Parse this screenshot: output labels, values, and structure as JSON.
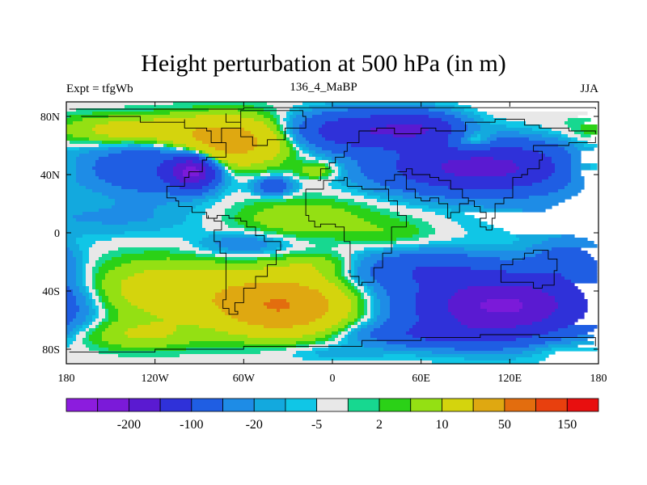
{
  "chart_data": {
    "type": "heatmap",
    "title": "Height perturbation at 500 hPa (in m)",
    "left_string": "Expt = tfgWb",
    "center_string": "136_4_MaBP",
    "right_string": "JJA",
    "x_ticks": [
      {
        "value": -180,
        "label": "180"
      },
      {
        "value": -120,
        "label": "120W"
      },
      {
        "value": -60,
        "label": "60W"
      },
      {
        "value": 0,
        "label": "0"
      },
      {
        "value": 60,
        "label": "60E"
      },
      {
        "value": 120,
        "label": "120E"
      },
      {
        "value": 180,
        "label": "180"
      }
    ],
    "y_ticks": [
      {
        "value": 80,
        "label": "80N"
      },
      {
        "value": 40,
        "label": "40N"
      },
      {
        "value": 0,
        "label": "0"
      },
      {
        "value": -40,
        "label": "40S"
      },
      {
        "value": -80,
        "label": "80S"
      }
    ],
    "xlim": [
      -180,
      180
    ],
    "ylim": [
      -90,
      90
    ],
    "colorbar": {
      "colors": [
        "#8c1cde",
        "#7b1ad9",
        "#5a1ad1",
        "#2f31d9",
        "#1f5ee3",
        "#1e8ce6",
        "#13a9de",
        "#10c6e6",
        "#e8e8e8",
        "#17d890",
        "#2bd117",
        "#94e013",
        "#d4d40d",
        "#dfa811",
        "#e36d0e",
        "#e8400e",
        "#e80f0f"
      ],
      "levels": [
        -300,
        -200,
        -150,
        -100,
        -50,
        -20,
        -10,
        -5,
        -2,
        2,
        5,
        10,
        20,
        50,
        100,
        150,
        200,
        300
      ],
      "labels": [
        {
          "after_box": 1,
          "text": "-200"
        },
        {
          "after_box": 3,
          "text": "-100"
        },
        {
          "after_box": 5,
          "text": "-20"
        },
        {
          "after_box": 7,
          "text": "-5"
        },
        {
          "after_box": 9,
          "text": "2"
        },
        {
          "after_box": 11,
          "text": "10"
        },
        {
          "after_box": 13,
          "text": "50"
        },
        {
          "after_box": 15,
          "text": "150"
        }
      ]
    },
    "features": [
      {
        "lon": -95,
        "lat": 42,
        "amp": -150,
        "rlon": 14,
        "rlat": 10
      },
      {
        "lon": -120,
        "lat": 45,
        "amp": -45,
        "rlon": 40,
        "rlat": 18
      },
      {
        "lon": -70,
        "lat": 62,
        "amp": 70,
        "rlon": 35,
        "rlat": 16
      },
      {
        "lon": -130,
        "lat": 70,
        "amp": 35,
        "rlon": 50,
        "rlat": 10
      },
      {
        "lon": -10,
        "lat": 43,
        "amp": 18,
        "rlon": 14,
        "rlat": 6
      },
      {
        "lon": -40,
        "lat": 32,
        "amp": -40,
        "rlon": 12,
        "rlat": 6
      },
      {
        "lon": 20,
        "lat": 70,
        "amp": -90,
        "rlon": 40,
        "rlat": 12
      },
      {
        "lon": 100,
        "lat": 45,
        "amp": -120,
        "rlon": 60,
        "rlat": 16
      },
      {
        "lon": 60,
        "lat": 72,
        "amp": -70,
        "rlon": 25,
        "rlat": 10
      },
      {
        "lon": 95,
        "lat": 62,
        "amp": 35,
        "rlon": 14,
        "rlat": 7
      },
      {
        "lon": 170,
        "lat": 45,
        "amp": 25,
        "rlon": 20,
        "rlat": 12
      },
      {
        "lon": -20,
        "lat": 10,
        "amp": 18,
        "rlon": 45,
        "rlat": 13
      },
      {
        "lon": 40,
        "lat": 0,
        "amp": 8,
        "rlon": 30,
        "rlat": 10
      },
      {
        "lon": 140,
        "lat": 10,
        "amp": -8,
        "rlon": 50,
        "rlat": 14
      },
      {
        "lon": -140,
        "lat": 10,
        "amp": -10,
        "rlon": 50,
        "rlat": 12
      },
      {
        "lon": -60,
        "lat": -8,
        "amp": -18,
        "rlon": 30,
        "rlat": 8
      },
      {
        "lon": -110,
        "lat": -40,
        "amp": 35,
        "rlon": 55,
        "rlat": 20
      },
      {
        "lon": -35,
        "lat": -50,
        "amp": 100,
        "rlon": 40,
        "rlat": 18
      },
      {
        "lon": -130,
        "lat": -70,
        "amp": 20,
        "rlon": 40,
        "rlat": 10
      },
      {
        "lon": -10,
        "lat": -22,
        "amp": 15,
        "rlon": 30,
        "rlat": 8
      },
      {
        "lon": 115,
        "lat": -50,
        "amp": -160,
        "rlon": 55,
        "rlat": 20
      },
      {
        "lon": 60,
        "lat": -25,
        "amp": -40,
        "rlon": 45,
        "rlat": 12
      },
      {
        "lon": 160,
        "lat": -20,
        "amp": -30,
        "rlon": 25,
        "rlat": 14
      },
      {
        "lon": 150,
        "lat": -78,
        "amp": 8,
        "rlon": 20,
        "rlat": 8
      },
      {
        "lon": 0,
        "lat": -82,
        "amp": -8,
        "rlon": 40,
        "rlat": 6
      },
      {
        "lon": 70,
        "lat": -70,
        "amp": -40,
        "rlon": 50,
        "rlat": 8
      }
    ],
    "coastlines": [
      [
        [
          -178,
          85
        ],
        [
          -100,
          85
        ],
        [
          -60,
          86
        ],
        [
          -10,
          86
        ],
        [
          40,
          86
        ],
        [
          110,
          86
        ],
        [
          178,
          85
        ]
      ],
      [
        [
          -170,
          80
        ],
        [
          -135,
          80
        ],
        [
          -130,
          76
        ],
        [
          -100,
          78
        ],
        [
          -100,
          72
        ],
        [
          -92,
          72
        ],
        [
          -85,
          70
        ],
        [
          -82,
          62
        ],
        [
          -72,
          62
        ],
        [
          -72,
          52
        ],
        [
          -85,
          50
        ],
        [
          -88,
          42
        ],
        [
          -97,
          38
        ],
        [
          -100,
          32
        ],
        [
          -108,
          32
        ],
        [
          -112,
          24
        ],
        [
          -106,
          22
        ],
        [
          -104,
          18
        ],
        [
          -95,
          14
        ],
        [
          -85,
          10
        ],
        [
          -80,
          8
        ],
        [
          -75,
          2
        ],
        [
          -80,
          -2
        ],
        [
          -80,
          -6
        ],
        [
          -76,
          -14
        ],
        [
          -72,
          -20
        ],
        [
          -72,
          -36
        ],
        [
          -72,
          -46
        ],
        [
          -74,
          -52
        ],
        [
          -70,
          -56
        ],
        [
          -64,
          -54
        ],
        [
          -66,
          -48
        ],
        [
          -60,
          -38
        ],
        [
          -52,
          -30
        ],
        [
          -44,
          -22
        ],
        [
          -38,
          -12
        ],
        [
          -35,
          -6
        ],
        [
          -46,
          -2
        ],
        [
          -52,
          4
        ],
        [
          -58,
          8
        ],
        [
          -62,
          10
        ],
        [
          -70,
          12
        ],
        [
          -78,
          10
        ],
        [
          -84,
          12
        ]
      ],
      [
        [
          -82,
          62
        ],
        [
          -75,
          72
        ],
        [
          -62,
          84
        ],
        [
          -36,
          84
        ],
        [
          -20,
          80
        ],
        [
          -18,
          72
        ],
        [
          -32,
          64
        ],
        [
          -44,
          60
        ],
        [
          -54,
          66
        ],
        [
          -62,
          76
        ],
        [
          -72,
          82
        ]
      ],
      [
        [
          -18,
          30
        ],
        [
          -12,
          30
        ],
        [
          -6,
          36
        ],
        [
          8,
          38
        ],
        [
          10,
          32
        ],
        [
          20,
          30
        ],
        [
          32,
          30
        ],
        [
          38,
          22
        ],
        [
          44,
          12
        ],
        [
          50,
          12
        ],
        [
          50,
          4
        ],
        [
          40,
          -4
        ],
        [
          40,
          -14
        ],
        [
          34,
          -24
        ],
        [
          28,
          -34
        ],
        [
          20,
          -36
        ],
        [
          18,
          -30
        ],
        [
          12,
          -18
        ],
        [
          12,
          -6
        ],
        [
          8,
          4
        ],
        [
          2,
          6
        ],
        [
          -8,
          4
        ],
        [
          -12,
          8
        ],
        [
          -16,
          12
        ],
        [
          -18,
          20
        ],
        [
          -18,
          30
        ]
      ],
      [
        [
          -10,
          36
        ],
        [
          -8,
          44
        ],
        [
          -2,
          48
        ],
        [
          2,
          52
        ],
        [
          8,
          56
        ],
        [
          10,
          62
        ],
        [
          18,
          70
        ],
        [
          30,
          72
        ],
        [
          42,
          68
        ],
        [
          60,
          72
        ],
        [
          70,
          70
        ],
        [
          90,
          76
        ],
        [
          110,
          78
        ],
        [
          130,
          74
        ],
        [
          140,
          72
        ],
        [
          160,
          70
        ],
        [
          178,
          68
        ]
      ],
      [
        [
          44,
          42
        ],
        [
          50,
          44
        ],
        [
          54,
          40
        ],
        [
          60,
          40
        ],
        [
          66,
          38
        ],
        [
          72,
          36
        ],
        [
          80,
          30
        ],
        [
          88,
          24
        ],
        [
          92,
          22
        ],
        [
          96,
          18
        ],
        [
          100,
          14
        ],
        [
          104,
          10
        ],
        [
          100,
          4
        ],
        [
          104,
          2
        ],
        [
          108,
          10
        ],
        [
          110,
          20
        ],
        [
          116,
          24
        ],
        [
          122,
          30
        ],
        [
          122,
          38
        ],
        [
          128,
          40
        ],
        [
          132,
          44
        ],
        [
          140,
          50
        ],
        [
          142,
          56
        ],
        [
          136,
          60
        ],
        [
          150,
          60
        ],
        [
          160,
          62
        ],
        [
          170,
          62
        ],
        [
          178,
          66
        ]
      ],
      [
        [
          32,
          30
        ],
        [
          36,
          36
        ],
        [
          42,
          40
        ],
        [
          50,
          30
        ],
        [
          56,
          24
        ],
        [
          60,
          22
        ],
        [
          66,
          24
        ],
        [
          72,
          20
        ],
        [
          78,
          10
        ],
        [
          80,
          14
        ],
        [
          86,
          20
        ],
        [
          92,
          22
        ]
      ],
      [
        [
          114,
          -22
        ],
        [
          122,
          -18
        ],
        [
          130,
          -14
        ],
        [
          136,
          -12
        ],
        [
          142,
          -12
        ],
        [
          146,
          -18
        ],
        [
          152,
          -26
        ],
        [
          150,
          -36
        ],
        [
          142,
          -38
        ],
        [
          136,
          -34
        ],
        [
          126,
          -34
        ],
        [
          116,
          -34
        ],
        [
          114,
          -28
        ],
        [
          114,
          -22
        ]
      ],
      [
        [
          -178,
          -82
        ],
        [
          -120,
          -80
        ],
        [
          -60,
          -78
        ],
        [
          -20,
          -78
        ],
        [
          20,
          -74
        ],
        [
          60,
          -72
        ],
        [
          100,
          -70
        ],
        [
          140,
          -72
        ],
        [
          178,
          -78
        ]
      ]
    ]
  }
}
